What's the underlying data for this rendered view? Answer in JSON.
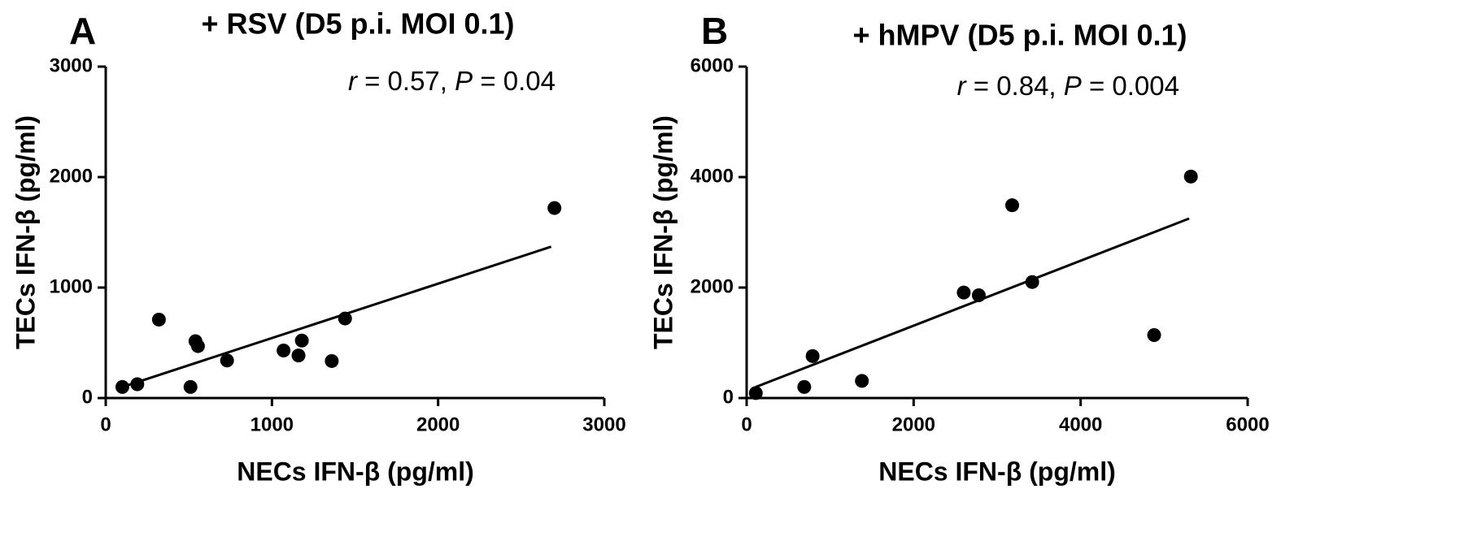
{
  "chart_data": [
    {
      "type": "scatter",
      "panel": "A",
      "title": "+ RSV (D5 p.i. MOI 0.1)",
      "xlabel": "NECs IFN-β (pg/ml)",
      "ylabel": "TECs IFN-β (pg/ml)",
      "xlim": [
        0,
        3000
      ],
      "ylim": [
        0,
        3000
      ],
      "xticks": [
        "0",
        "1000",
        "2000",
        "3000"
      ],
      "yticks": [
        "0",
        "1000",
        "2000",
        "3000"
      ],
      "stat": {
        "r_label": "r",
        "r_text": " = 0.57, ",
        "p_label": "P",
        "p_text": " = 0.04"
      },
      "points": [
        {
          "x": 100,
          "y": 100
        },
        {
          "x": 190,
          "y": 125
        },
        {
          "x": 320,
          "y": 710
        },
        {
          "x": 510,
          "y": 100
        },
        {
          "x": 540,
          "y": 515
        },
        {
          "x": 555,
          "y": 470
        },
        {
          "x": 730,
          "y": 340
        },
        {
          "x": 1070,
          "y": 430
        },
        {
          "x": 1160,
          "y": 385
        },
        {
          "x": 1180,
          "y": 520
        },
        {
          "x": 1360,
          "y": 335
        },
        {
          "x": 1440,
          "y": 720
        },
        {
          "x": 2700,
          "y": 1720
        }
      ],
      "fit_line": [
        {
          "x": 100,
          "y": 100
        },
        {
          "x": 2680,
          "y": 1370
        }
      ],
      "grid": false
    },
    {
      "type": "scatter",
      "panel": "B",
      "title": "+ hMPV (D5 p.i. MOI 0.1)",
      "xlabel": "NECs IFN-β (pg/ml)",
      "ylabel": "TECs IFN-β (pg/ml)",
      "xlim": [
        0,
        6000
      ],
      "ylim": [
        0,
        6000
      ],
      "xticks": [
        "0",
        "2000",
        "4000",
        "6000"
      ],
      "yticks": [
        "0",
        "2000",
        "4000",
        "6000"
      ],
      "stat": {
        "r_label": "r",
        "r_text": " = 0.84, ",
        "p_label": "P",
        "p_text": " = 0.004"
      },
      "points": [
        {
          "x": 110,
          "y": 90
        },
        {
          "x": 690,
          "y": 200
        },
        {
          "x": 790,
          "y": 760
        },
        {
          "x": 1380,
          "y": 310
        },
        {
          "x": 2600,
          "y": 1910
        },
        {
          "x": 2780,
          "y": 1860
        },
        {
          "x": 3180,
          "y": 3490
        },
        {
          "x": 3420,
          "y": 2100
        },
        {
          "x": 4880,
          "y": 1140
        },
        {
          "x": 5320,
          "y": 4010
        }
      ],
      "fit_line": [
        {
          "x": 110,
          "y": 200
        },
        {
          "x": 5300,
          "y": 3250
        }
      ],
      "grid": false
    }
  ]
}
